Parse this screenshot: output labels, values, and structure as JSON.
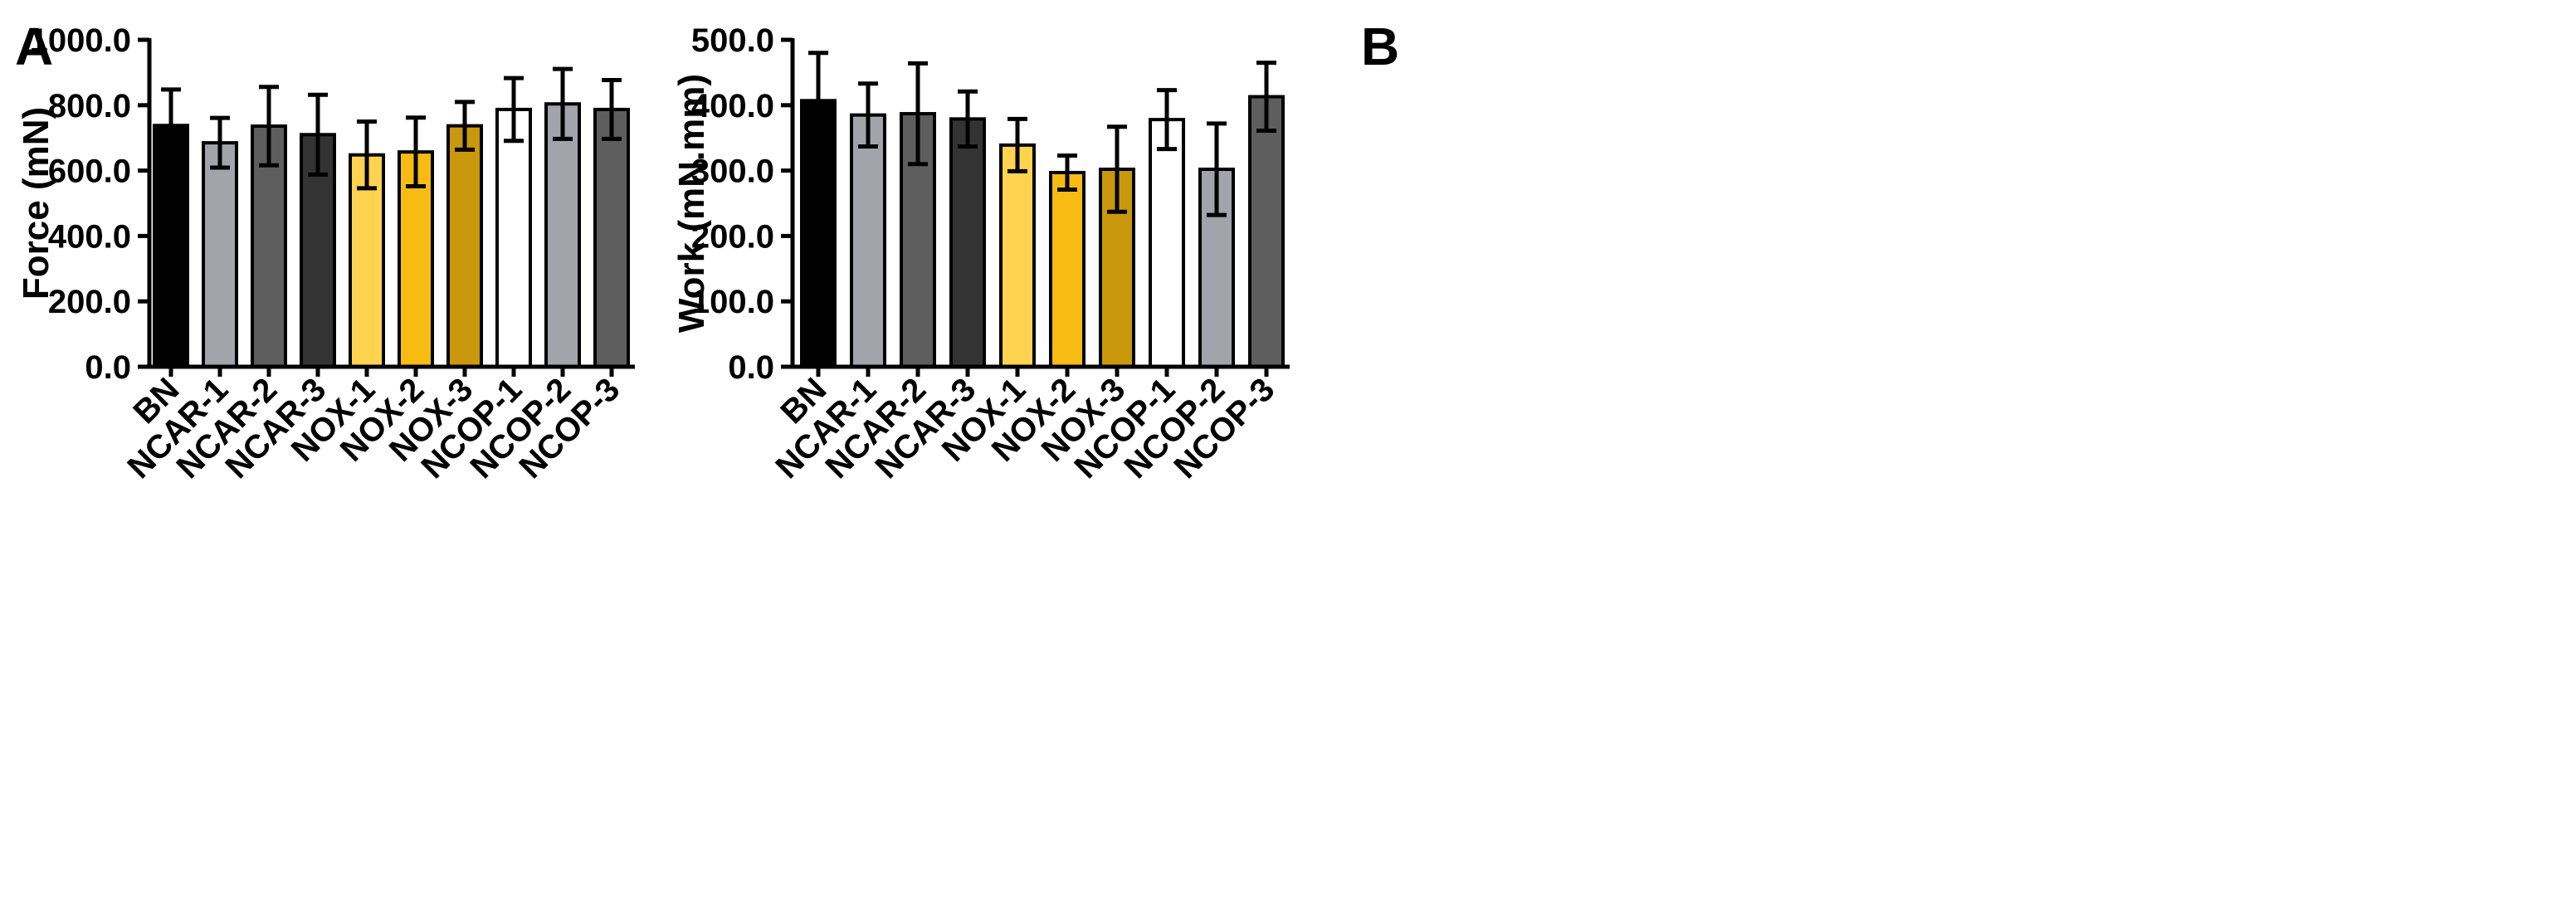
{
  "chart_data": [
    {
      "type": "bar",
      "panel": "A",
      "title": "",
      "xlabel": "",
      "ylabel": "Force (mN)",
      "ylim": [
        0,
        1000
      ],
      "yticks": [
        "0.0",
        "200.0",
        "400.0",
        "600.0",
        "800.0",
        "1000.0"
      ],
      "categories": [
        "BN",
        "NCAR-1",
        "NCAR-2",
        "NCAR-3",
        "NOX-1",
        "NOX-2",
        "NOX-3",
        "NCOP-1",
        "NCOP-2",
        "NCOP-3"
      ],
      "values": [
        738,
        685,
        736,
        710,
        648,
        657,
        737,
        787,
        804,
        787
      ],
      "errors": [
        110,
        76,
        120,
        122,
        102,
        105,
        73,
        96,
        107,
        90
      ],
      "colors": [
        "#000000",
        "#a3a3ab",
        "#5e5e5e",
        "#333333",
        "#ffd350",
        "#f8bb14",
        "#c9980d",
        "#ffffff",
        "#a3a3ab",
        "#5e5e5e"
      ],
      "grid": false
    },
    {
      "type": "bar",
      "panel": "B",
      "title": "",
      "xlabel": "",
      "ylabel": "Work (mN.mm)",
      "ylim": [
        0,
        500
      ],
      "yticks": [
        "0.0",
        "100.0",
        "200.0",
        "300.0",
        "400.0",
        "500.0"
      ],
      "categories": [
        "BN",
        "NCAR-1",
        "NCAR-2",
        "NCAR-3",
        "NOX-1",
        "NOX-2",
        "NOX-3",
        "NCOP-1",
        "NCOP-2",
        "NCOP-3"
      ],
      "values": [
        407,
        385,
        387,
        379,
        339,
        297,
        302,
        378,
        302,
        413
      ],
      "errors": [
        73,
        48,
        77,
        42,
        40,
        26,
        65,
        45,
        70,
        52
      ],
      "colors": [
        "#000000",
        "#a3a3ab",
        "#5e5e5e",
        "#333333",
        "#ffd350",
        "#f8bb14",
        "#c9980d",
        "#ffffff",
        "#a3a3ab",
        "#5e5e5e"
      ],
      "grid": false
    }
  ]
}
